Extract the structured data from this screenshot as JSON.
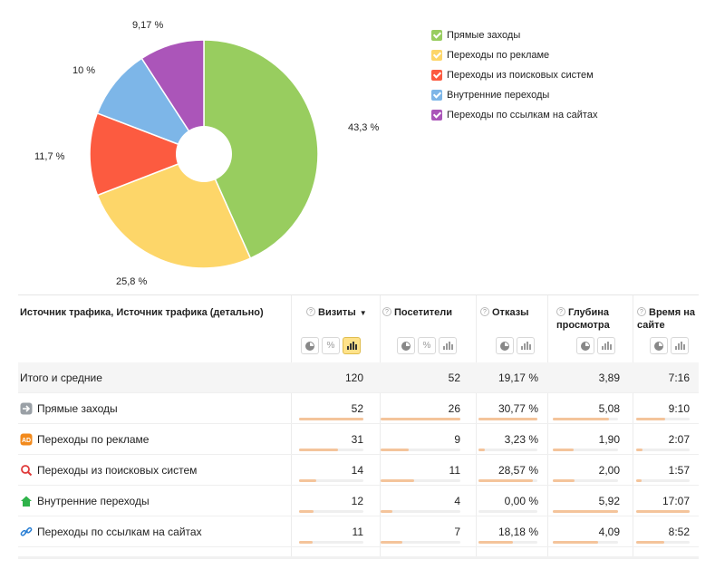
{
  "chart_data": {
    "type": "pie",
    "slices": [
      {
        "label": "Прямые заходы",
        "value": 43.3,
        "value_label": "43,3 %",
        "color": "#98cd5f"
      },
      {
        "label": "Переходы по рекламе",
        "value": 25.8,
        "value_label": "25,8 %",
        "color": "#fdd669"
      },
      {
        "label": "Переходы из поисковых систем",
        "value": 11.7,
        "value_label": "11,7 %",
        "color": "#fc5b40"
      },
      {
        "label": "Внутренние переходы",
        "value": 10,
        "value_label": "10 %",
        "color": "#7db6e8"
      },
      {
        "label": "Переходы по ссылкам на сайтах",
        "value": 9.17,
        "value_label": "9,17 %",
        "color": "#ab55b9"
      }
    ],
    "legend_position": "right"
  },
  "table": {
    "dimension_header": "Источник трафика, Источник трафика (детально)",
    "columns": [
      {
        "key": "visits",
        "label": "Визиты",
        "sort_arrow": "▼",
        "buttons": [
          "pie",
          "percent",
          "bars"
        ],
        "active_button": "bars"
      },
      {
        "key": "visitors",
        "label": "Посетители",
        "buttons": [
          "pie",
          "percent",
          "bars"
        ]
      },
      {
        "key": "bounces",
        "label": "Отказы",
        "buttons": [
          "pie",
          "bars"
        ]
      },
      {
        "key": "depth",
        "label": "Глубина просмотра",
        "buttons": [
          "pie",
          "bars"
        ]
      },
      {
        "key": "time",
        "label": "Время на сайте",
        "buttons": [
          "pie",
          "bars"
        ]
      }
    ],
    "total": {
      "label": "Итого и средние",
      "visits": "120",
      "visitors": "52",
      "bounces": "19,17 %",
      "depth": "3,89",
      "time": "7:16"
    },
    "rows": [
      {
        "label": "Прямые заходы",
        "icon": "arrow-right-icon",
        "visits": "52",
        "visitors": "26",
        "bounces": "30,77 %",
        "depth": "5,08",
        "time": "9:10",
        "bars": [
          1.0,
          1.0,
          1.0,
          0.86,
          0.54
        ]
      },
      {
        "label": "Переходы по рекламе",
        "icon": "ad-icon",
        "visits": "31",
        "visitors": "9",
        "bounces": "3,23 %",
        "depth": "1,90",
        "time": "2:07",
        "bars": [
          0.6,
          0.35,
          0.1,
          0.32,
          0.12
        ]
      },
      {
        "label": "Переходы из поисковых систем",
        "icon": "search-icon",
        "visits": "14",
        "visitors": "11",
        "bounces": "28,57 %",
        "depth": "2,00",
        "time": "1:57",
        "bars": [
          0.27,
          0.42,
          0.93,
          0.34,
          0.11
        ]
      },
      {
        "label": "Внутренние переходы",
        "icon": "home-icon",
        "visits": "12",
        "visitors": "4",
        "bounces": "0,00 %",
        "depth": "5,92",
        "time": "17:07",
        "bars": [
          0.23,
          0.15,
          0.0,
          1.0,
          1.0
        ]
      },
      {
        "label": "Переходы по ссылкам на сайтах",
        "icon": "link-icon",
        "visits": "11",
        "visitors": "7",
        "bounces": "18,18 %",
        "depth": "4,09",
        "time": "8:52",
        "bars": [
          0.21,
          0.27,
          0.59,
          0.69,
          0.52
        ]
      }
    ]
  }
}
